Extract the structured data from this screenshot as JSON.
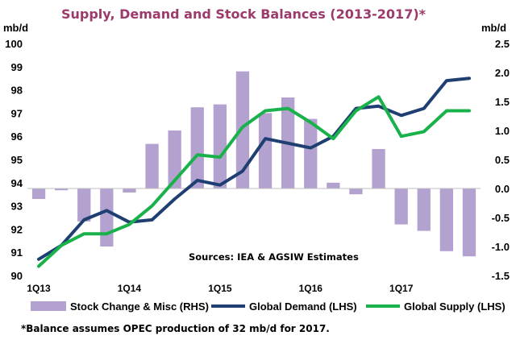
{
  "chart_data": {
    "type": "bar+line",
    "title": "Supply, Demand and Stock Balances (2013-2017)*",
    "left_axis_unit": "mb/d",
    "right_axis_unit": "mb/d",
    "left_ylim": [
      90,
      100
    ],
    "right_ylim": [
      -1.5,
      2.5
    ],
    "left_ticks": [
      "100",
      "99",
      "98",
      "97",
      "96",
      "95",
      "94",
      "93",
      "92",
      "91",
      "90"
    ],
    "right_ticks": [
      "2.5",
      "2.0",
      "1.5",
      "1.0",
      "0.5",
      "0.0",
      "-0.5",
      "-1.0",
      "-1.5"
    ],
    "categories": [
      "1Q13",
      "2Q13",
      "3Q13",
      "4Q13",
      "1Q14",
      "2Q14",
      "3Q14",
      "4Q14",
      "1Q15",
      "2Q15",
      "3Q15",
      "4Q15",
      "1Q16",
      "2Q16",
      "3Q16",
      "4Q16",
      "1Q17",
      "2Q17",
      "3Q17",
      "4Q17"
    ],
    "x_tick_labels": [
      "1Q13",
      "1Q14",
      "1Q15",
      "1Q16",
      "1Q17"
    ],
    "annotation": "Sources: IEA & AGSIW Estimates",
    "series": [
      {
        "name": "Stock Change & Misc (RHS)",
        "type": "bar",
        "axis": "right",
        "color": "#b3a2cf",
        "values": [
          -0.18,
          -0.03,
          -0.57,
          -1.0,
          -0.07,
          0.77,
          1.0,
          1.4,
          1.45,
          2.02,
          1.3,
          1.57,
          1.2,
          0.1,
          -0.1,
          0.68,
          -0.62,
          -0.73,
          -1.08,
          -1.17
        ]
      },
      {
        "name": "Global Demand (LHS)",
        "type": "line",
        "axis": "left",
        "color": "#1f3f73",
        "values": [
          90.7,
          91.3,
          92.4,
          92.8,
          92.3,
          92.4,
          93.3,
          94.1,
          93.9,
          94.5,
          95.9,
          95.7,
          95.5,
          96.0,
          97.2,
          97.3,
          96.9,
          97.2,
          98.4,
          98.5
        ]
      },
      {
        "name": "Global Supply (LHS)",
        "type": "line",
        "axis": "left",
        "color": "#19b24a",
        "values": [
          90.4,
          91.3,
          91.8,
          91.8,
          92.2,
          93.0,
          94.1,
          95.2,
          95.1,
          96.4,
          97.1,
          97.2,
          96.6,
          95.9,
          97.1,
          97.7,
          96.0,
          96.2,
          97.1,
          97.1
        ]
      }
    ],
    "legend_position": "bottom",
    "footnote": "*Balance  assumes  OPEC  production of 32 mb/d for 2017."
  }
}
